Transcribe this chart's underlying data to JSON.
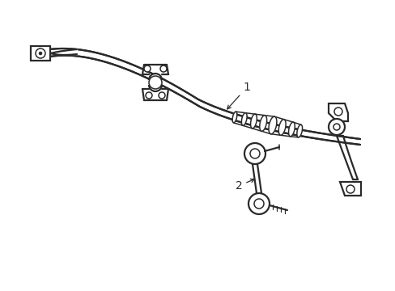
{
  "bg_color": "#ffffff",
  "line_color": "#2a2a2a",
  "lw": 1.1,
  "lw_thick": 1.6,
  "label1": "1",
  "label2": "2",
  "figsize": [
    4.89,
    3.6
  ],
  "dpi": 100
}
